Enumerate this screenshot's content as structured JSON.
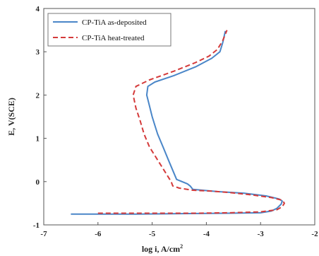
{
  "chart_data": {
    "type": "line",
    "xlabel": "log i, A/cm",
    "xlabel_sup": "2",
    "ylabel": "E, V(SCE)",
    "xlim": [
      -7,
      -2
    ],
    "ylim": [
      -1,
      4
    ],
    "xticks": [
      "-7",
      "-6",
      "-5",
      "-4",
      "-3",
      "-2"
    ],
    "yticks": [
      "-1",
      "0",
      "1",
      "2",
      "3",
      "4"
    ],
    "grid": false,
    "legend_position": "top-left",
    "series": [
      {
        "name": "CP-TiA as-deposited",
        "color": "#4a86c8",
        "dash": "solid",
        "points": [
          [
            -6.5,
            -0.75
          ],
          [
            -5.3,
            -0.75
          ],
          [
            -4.5,
            -0.74
          ],
          [
            -3.6,
            -0.73
          ],
          [
            -3.0,
            -0.72
          ],
          [
            -2.8,
            -0.68
          ],
          [
            -2.7,
            -0.62
          ],
          [
            -2.62,
            -0.52
          ],
          [
            -2.6,
            -0.45
          ],
          [
            -2.66,
            -0.4
          ],
          [
            -2.9,
            -0.33
          ],
          [
            -3.3,
            -0.27
          ],
          [
            -3.8,
            -0.23
          ],
          [
            -4.25,
            -0.18
          ],
          [
            -4.3,
            -0.1
          ],
          [
            -4.35,
            -0.05
          ],
          [
            -4.55,
            0.05
          ],
          [
            -4.7,
            0.5
          ],
          [
            -4.8,
            0.8
          ],
          [
            -4.9,
            1.1
          ],
          [
            -4.95,
            1.3
          ],
          [
            -5.0,
            1.5
          ],
          [
            -5.05,
            1.75
          ],
          [
            -5.1,
            2.0
          ],
          [
            -5.08,
            2.2
          ],
          [
            -4.95,
            2.3
          ],
          [
            -4.6,
            2.45
          ],
          [
            -4.2,
            2.65
          ],
          [
            -3.9,
            2.85
          ],
          [
            -3.75,
            3.0
          ],
          [
            -3.7,
            3.2
          ],
          [
            -3.65,
            3.48
          ]
        ]
      },
      {
        "name": "CP-TiA heat-treated",
        "color": "#d43a3a",
        "dash": "dashed",
        "points": [
          [
            -6.0,
            -0.73
          ],
          [
            -5.0,
            -0.73
          ],
          [
            -4.2,
            -0.73
          ],
          [
            -3.6,
            -0.72
          ],
          [
            -3.0,
            -0.7
          ],
          [
            -2.7,
            -0.65
          ],
          [
            -2.6,
            -0.58
          ],
          [
            -2.56,
            -0.5
          ],
          [
            -2.6,
            -0.43
          ],
          [
            -2.8,
            -0.37
          ],
          [
            -3.2,
            -0.3
          ],
          [
            -3.6,
            -0.25
          ],
          [
            -3.9,
            -0.22
          ],
          [
            -4.25,
            -0.2
          ],
          [
            -4.5,
            -0.15
          ],
          [
            -4.62,
            -0.1
          ],
          [
            -4.65,
            0.0
          ],
          [
            -4.9,
            0.5
          ],
          [
            -5.05,
            0.8
          ],
          [
            -5.15,
            1.1
          ],
          [
            -5.22,
            1.4
          ],
          [
            -5.3,
            1.7
          ],
          [
            -5.35,
            2.0
          ],
          [
            -5.3,
            2.2
          ],
          [
            -5.05,
            2.35
          ],
          [
            -4.6,
            2.55
          ],
          [
            -4.2,
            2.75
          ],
          [
            -3.95,
            2.9
          ],
          [
            -3.8,
            3.05
          ],
          [
            -3.7,
            3.25
          ],
          [
            -3.62,
            3.5
          ]
        ]
      }
    ]
  }
}
